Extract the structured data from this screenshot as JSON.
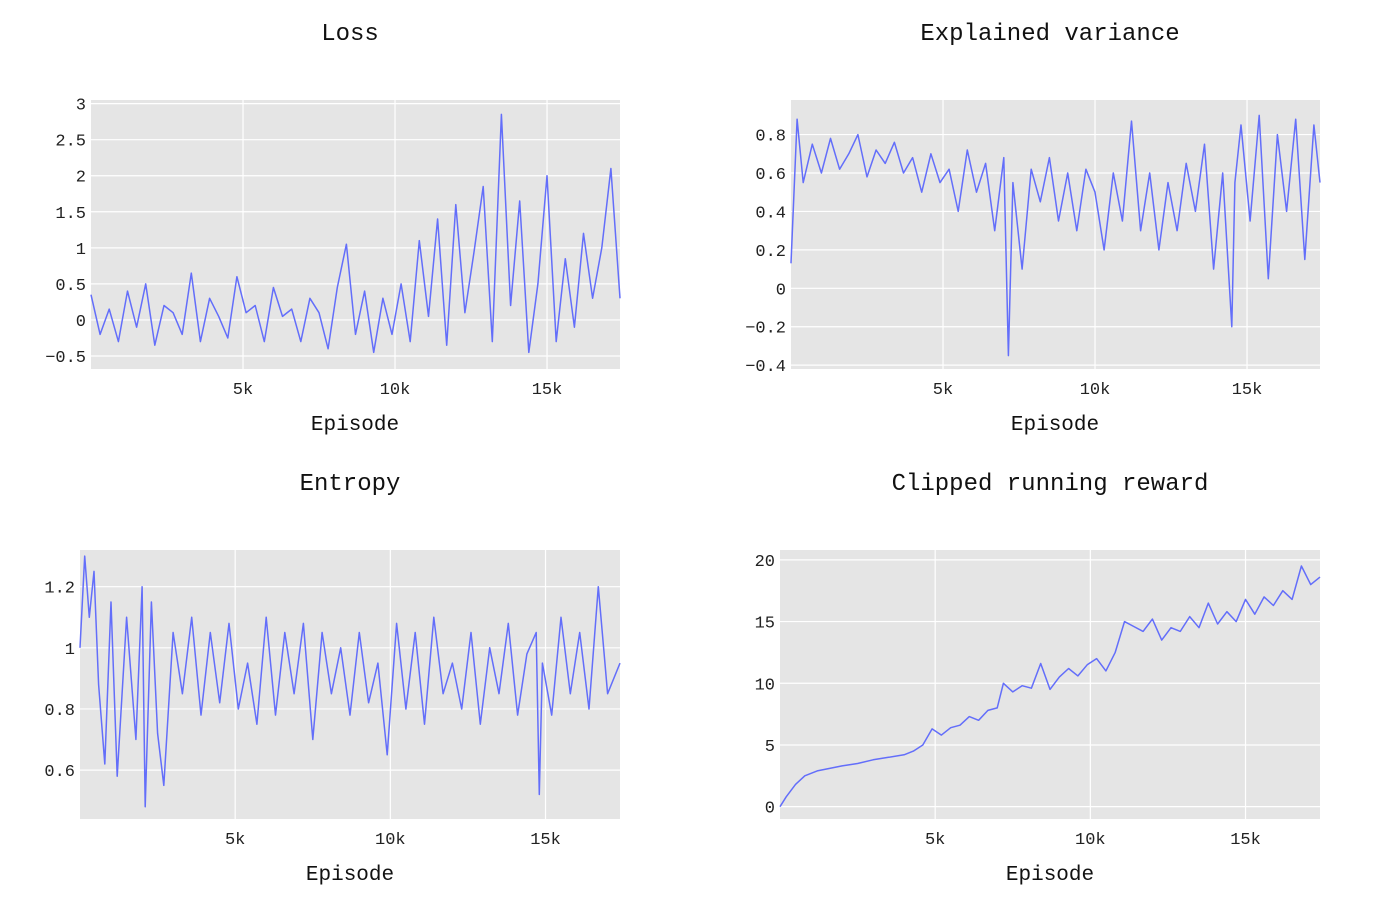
{
  "chart_data": [
    {
      "type": "line",
      "title": "Loss",
      "xlabel": "Episode",
      "ylabel": "",
      "xlim": [
        0,
        17400
      ],
      "ylim": [
        -0.68,
        3.05
      ],
      "xticks": [
        {
          "v": 5000,
          "label": "5k"
        },
        {
          "v": 10000,
          "label": "10k"
        },
        {
          "v": 15000,
          "label": "15k"
        }
      ],
      "yticks": [
        {
          "v": -0.5,
          "label": "−0.5"
        },
        {
          "v": 0,
          "label": "0"
        },
        {
          "v": 0.5,
          "label": "0.5"
        },
        {
          "v": 1,
          "label": "1"
        },
        {
          "v": 1.5,
          "label": "1.5"
        },
        {
          "v": 2,
          "label": "2"
        },
        {
          "v": 2.5,
          "label": "2.5"
        },
        {
          "v": 3,
          "label": "3"
        }
      ],
      "color": "#636efa",
      "grid": true,
      "series": [
        {
          "x": [
            0,
            300,
            600,
            900,
            1200,
            1500,
            1800,
            2100,
            2400,
            2700,
            3000,
            3300,
            3600,
            3900,
            4200,
            4500,
            4800,
            5100,
            5400,
            5700,
            6000,
            6300,
            6600,
            6900,
            7200,
            7500,
            7800,
            8100,
            8400,
            8700,
            9000,
            9300,
            9600,
            9900,
            10200,
            10500,
            10800,
            11100,
            11400,
            11700,
            12000,
            12300,
            12600,
            12900,
            13200,
            13500,
            13800,
            14100,
            14400,
            14700,
            15000,
            15300,
            15600,
            15900,
            16200,
            16500,
            16800,
            17100,
            17400
          ],
          "y": [
            0.35,
            -0.2,
            0.15,
            -0.3,
            0.4,
            -0.1,
            0.5,
            -0.35,
            0.2,
            0.1,
            -0.2,
            0.65,
            -0.3,
            0.3,
            0.05,
            -0.25,
            0.6,
            0.1,
            0.2,
            -0.3,
            0.45,
            0.05,
            0.15,
            -0.3,
            0.3,
            0.1,
            -0.4,
            0.45,
            1.05,
            -0.2,
            0.4,
            -0.45,
            0.3,
            -0.2,
            0.5,
            -0.3,
            1.1,
            0.05,
            1.4,
            -0.35,
            1.6,
            0.1,
            0.95,
            1.85,
            -0.3,
            2.85,
            0.2,
            1.65,
            -0.45,
            0.5,
            2.0,
            -0.3,
            0.85,
            -0.1,
            1.2,
            0.3,
            1.0,
            2.1,
            0.3
          ]
        }
      ]
    },
    {
      "type": "line",
      "title": "Explained variance",
      "xlabel": "Episode",
      "ylabel": "",
      "xlim": [
        0,
        17400
      ],
      "ylim": [
        -0.42,
        0.98
      ],
      "xticks": [
        {
          "v": 5000,
          "label": "5k"
        },
        {
          "v": 10000,
          "label": "10k"
        },
        {
          "v": 15000,
          "label": "15k"
        }
      ],
      "yticks": [
        {
          "v": -0.4,
          "label": "−0.4"
        },
        {
          "v": -0.2,
          "label": "−0.2"
        },
        {
          "v": 0,
          "label": "0"
        },
        {
          "v": 0.2,
          "label": "0.2"
        },
        {
          "v": 0.4,
          "label": "0.4"
        },
        {
          "v": 0.6,
          "label": "0.6"
        },
        {
          "v": 0.8,
          "label": "0.8"
        }
      ],
      "color": "#636efa",
      "grid": true,
      "series": [
        {
          "x": [
            0,
            200,
            400,
            700,
            1000,
            1300,
            1600,
            1900,
            2200,
            2500,
            2800,
            3100,
            3400,
            3700,
            4000,
            4300,
            4600,
            4900,
            5200,
            5500,
            5800,
            6100,
            6400,
            6700,
            7000,
            7150,
            7300,
            7600,
            7900,
            8200,
            8500,
            8800,
            9100,
            9400,
            9700,
            10000,
            10300,
            10600,
            10900,
            11200,
            11500,
            11800,
            12100,
            12400,
            12700,
            13000,
            13300,
            13600,
            13900,
            14200,
            14500,
            14600,
            14800,
            15100,
            15400,
            15700,
            16000,
            16300,
            16600,
            16900,
            17200,
            17400
          ],
          "y": [
            0.13,
            0.88,
            0.55,
            0.75,
            0.6,
            0.78,
            0.62,
            0.7,
            0.8,
            0.58,
            0.72,
            0.65,
            0.76,
            0.6,
            0.68,
            0.5,
            0.7,
            0.55,
            0.62,
            0.4,
            0.72,
            0.5,
            0.65,
            0.3,
            0.68,
            -0.35,
            0.55,
            0.1,
            0.62,
            0.45,
            0.68,
            0.35,
            0.6,
            0.3,
            0.62,
            0.5,
            0.2,
            0.6,
            0.35,
            0.87,
            0.3,
            0.6,
            0.2,
            0.55,
            0.3,
            0.65,
            0.4,
            0.75,
            0.1,
            0.6,
            -0.2,
            0.55,
            0.85,
            0.35,
            0.9,
            0.05,
            0.8,
            0.4,
            0.88,
            0.15,
            0.85,
            0.55
          ]
        }
      ]
    },
    {
      "type": "line",
      "title": "Entropy",
      "xlabel": "Episode",
      "ylabel": "",
      "xlim": [
        0,
        17400
      ],
      "ylim": [
        0.44,
        1.32
      ],
      "xticks": [
        {
          "v": 5000,
          "label": "5k"
        },
        {
          "v": 10000,
          "label": "10k"
        },
        {
          "v": 15000,
          "label": "15k"
        }
      ],
      "yticks": [
        {
          "v": 0.6,
          "label": "0.6"
        },
        {
          "v": 0.8,
          "label": "0.8"
        },
        {
          "v": 1,
          "label": "1"
        },
        {
          "v": 1.2,
          "label": "1.2"
        }
      ],
      "color": "#636efa",
      "grid": true,
      "series": [
        {
          "x": [
            0,
            150,
            300,
            450,
            600,
            800,
            1000,
            1200,
            1500,
            1800,
            2000,
            2100,
            2300,
            2500,
            2700,
            3000,
            3300,
            3600,
            3900,
            4200,
            4500,
            4800,
            5100,
            5400,
            5700,
            6000,
            6300,
            6600,
            6900,
            7200,
            7500,
            7800,
            8100,
            8400,
            8700,
            9000,
            9300,
            9600,
            9900,
            10200,
            10500,
            10800,
            11100,
            11400,
            11700,
            12000,
            12300,
            12600,
            12900,
            13200,
            13500,
            13800,
            14100,
            14400,
            14700,
            14800,
            14900,
            15200,
            15500,
            15800,
            16100,
            16400,
            16700,
            17000,
            17400
          ],
          "y": [
            1.0,
            1.3,
            1.1,
            1.25,
            0.88,
            0.62,
            1.15,
            0.58,
            1.1,
            0.7,
            1.2,
            0.48,
            1.15,
            0.72,
            0.55,
            1.05,
            0.85,
            1.1,
            0.78,
            1.05,
            0.82,
            1.08,
            0.8,
            0.95,
            0.75,
            1.1,
            0.78,
            1.05,
            0.85,
            1.08,
            0.7,
            1.05,
            0.85,
            1.0,
            0.78,
            1.05,
            0.82,
            0.95,
            0.65,
            1.08,
            0.8,
            1.05,
            0.75,
            1.1,
            0.85,
            0.95,
            0.8,
            1.05,
            0.75,
            1.0,
            0.85,
            1.08,
            0.78,
            0.98,
            1.05,
            0.52,
            0.95,
            0.78,
            1.1,
            0.85,
            1.05,
            0.8,
            1.2,
            0.85,
            0.95
          ]
        }
      ]
    },
    {
      "type": "line",
      "title": "Clipped running reward",
      "xlabel": "Episode",
      "ylabel": "",
      "xlim": [
        0,
        17400
      ],
      "ylim": [
        -1,
        20.8
      ],
      "xticks": [
        {
          "v": 5000,
          "label": "5k"
        },
        {
          "v": 10000,
          "label": "10k"
        },
        {
          "v": 15000,
          "label": "15k"
        }
      ],
      "yticks": [
        {
          "v": 0,
          "label": "0"
        },
        {
          "v": 5,
          "label": "5"
        },
        {
          "v": 10,
          "label": "10"
        },
        {
          "v": 15,
          "label": "15"
        },
        {
          "v": 20,
          "label": "20"
        }
      ],
      "color": "#636efa",
      "grid": true,
      "series": [
        {
          "x": [
            0,
            200,
            500,
            800,
            1200,
            1600,
            2000,
            2500,
            3000,
            3500,
            4000,
            4300,
            4600,
            4900,
            5200,
            5500,
            5800,
            6100,
            6400,
            6700,
            7000,
            7200,
            7500,
            7800,
            8100,
            8400,
            8700,
            9000,
            9300,
            9600,
            9900,
            10200,
            10500,
            10800,
            11100,
            11400,
            11700,
            12000,
            12300,
            12600,
            12900,
            13200,
            13500,
            13800,
            14100,
            14400,
            14700,
            15000,
            15300,
            15600,
            15900,
            16200,
            16500,
            16800,
            17100,
            17400
          ],
          "y": [
            0,
            0.8,
            1.8,
            2.5,
            2.9,
            3.1,
            3.3,
            3.5,
            3.8,
            4.0,
            4.2,
            4.5,
            5.0,
            6.3,
            5.8,
            6.4,
            6.6,
            7.3,
            7.0,
            7.8,
            8.0,
            10.0,
            9.3,
            9.8,
            9.6,
            11.6,
            9.5,
            10.5,
            11.2,
            10.6,
            11.5,
            12.0,
            11.0,
            12.5,
            15.0,
            14.6,
            14.2,
            15.2,
            13.5,
            14.5,
            14.2,
            15.4,
            14.5,
            16.5,
            14.8,
            15.8,
            15.0,
            16.8,
            15.6,
            17.0,
            16.3,
            17.5,
            16.8,
            19.5,
            18.0,
            18.6
          ]
        }
      ]
    }
  ]
}
